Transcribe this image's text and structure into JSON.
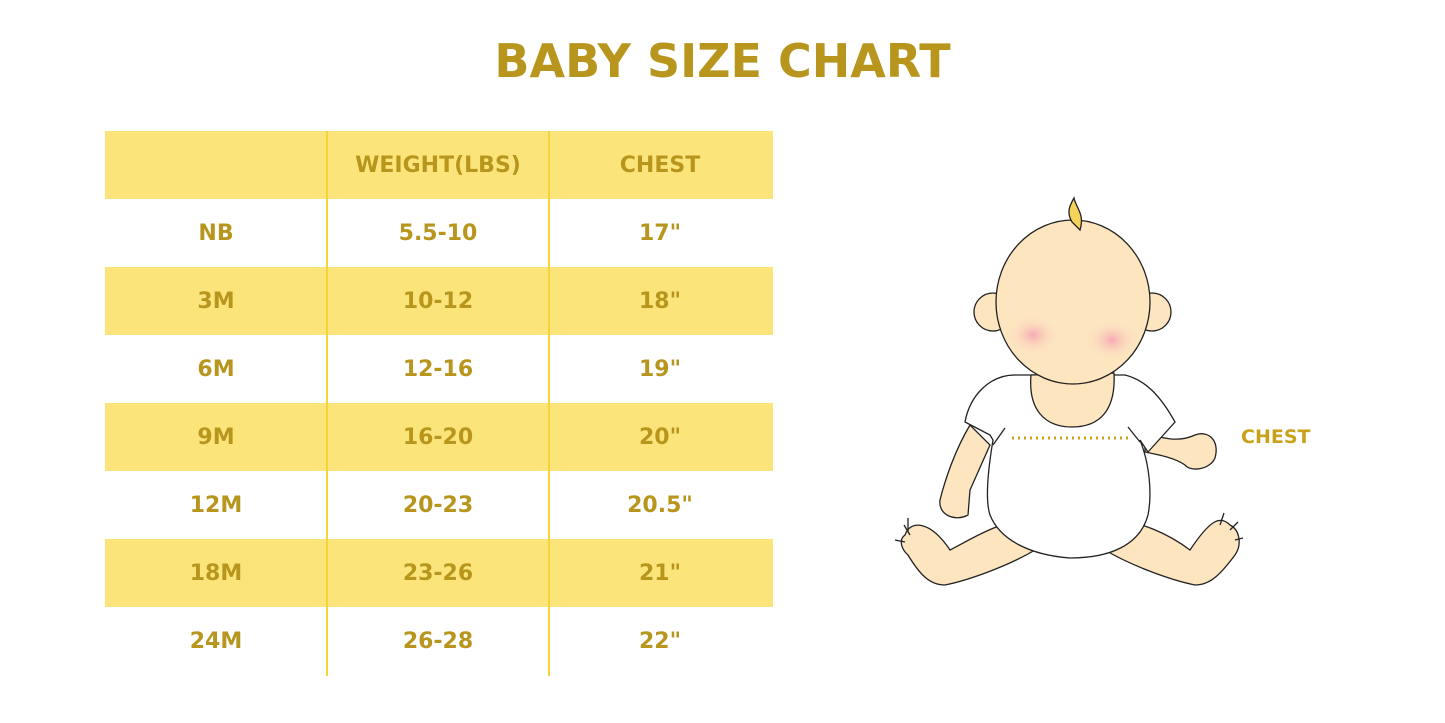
{
  "title": "BABY SIZE CHART",
  "table": {
    "headers": [
      "",
      "WEIGHT(LBS)",
      "CHEST"
    ],
    "rows": [
      [
        "NB",
        "5.5-10",
        "17\""
      ],
      [
        "3M",
        "10-12",
        "18\""
      ],
      [
        "6M",
        "12-16",
        "19\""
      ],
      [
        "9M",
        "16-20",
        "20\""
      ],
      [
        "12M",
        "20-23",
        "20.5\""
      ],
      [
        "18M",
        "23-26",
        "21\""
      ],
      [
        "24M",
        "26-28",
        "22\""
      ]
    ]
  },
  "illustration": {
    "chest_label": "CHEST"
  },
  "colors": {
    "accent": "#b8961e",
    "row_highlight": "#fbe57a",
    "skin": "#fde5c0"
  }
}
